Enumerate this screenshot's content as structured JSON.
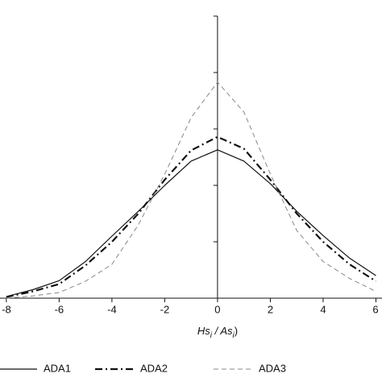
{
  "chart_data": {
    "type": "line",
    "x_label": [
      "Hs",
      "i",
      " / As",
      "i",
      ")"
    ],
    "x": [
      -8,
      -7,
      -6,
      -5,
      -4,
      -3,
      -2,
      -1,
      0,
      1,
      2,
      3,
      4,
      5,
      6
    ],
    "series": [
      {
        "name": "ADA1",
        "color": "#111111",
        "line_style": "solid",
        "values": [
          0.003,
          0.015,
          0.031,
          0.065,
          0.11,
          0.154,
          0.2,
          0.243,
          0.263,
          0.243,
          0.203,
          0.154,
          0.111,
          0.071,
          0.04
        ]
      },
      {
        "name": "ADA2",
        "color": "#111111",
        "line_style": "dashdot",
        "values": [
          0.002,
          0.012,
          0.025,
          0.058,
          0.1,
          0.15,
          0.21,
          0.262,
          0.286,
          0.265,
          0.21,
          0.15,
          0.1,
          0.06,
          0.03
        ]
      },
      {
        "name": "ADA3",
        "color": "#888888",
        "line_style": "dashed",
        "values": [
          0.0,
          0.004,
          0.01,
          0.03,
          0.06,
          0.13,
          0.22,
          0.32,
          0.383,
          0.33,
          0.22,
          0.12,
          0.065,
          0.035,
          0.012
        ]
      }
    ],
    "xlim": [
      -8.24,
      6.23
    ],
    "xticks": [
      -8,
      -6,
      -4,
      -2,
      0,
      2,
      4,
      6
    ],
    "ylim": [
      0,
      0.5
    ],
    "yticks": [
      0,
      0.1,
      0.2,
      0.3,
      0.4,
      0.5
    ]
  }
}
